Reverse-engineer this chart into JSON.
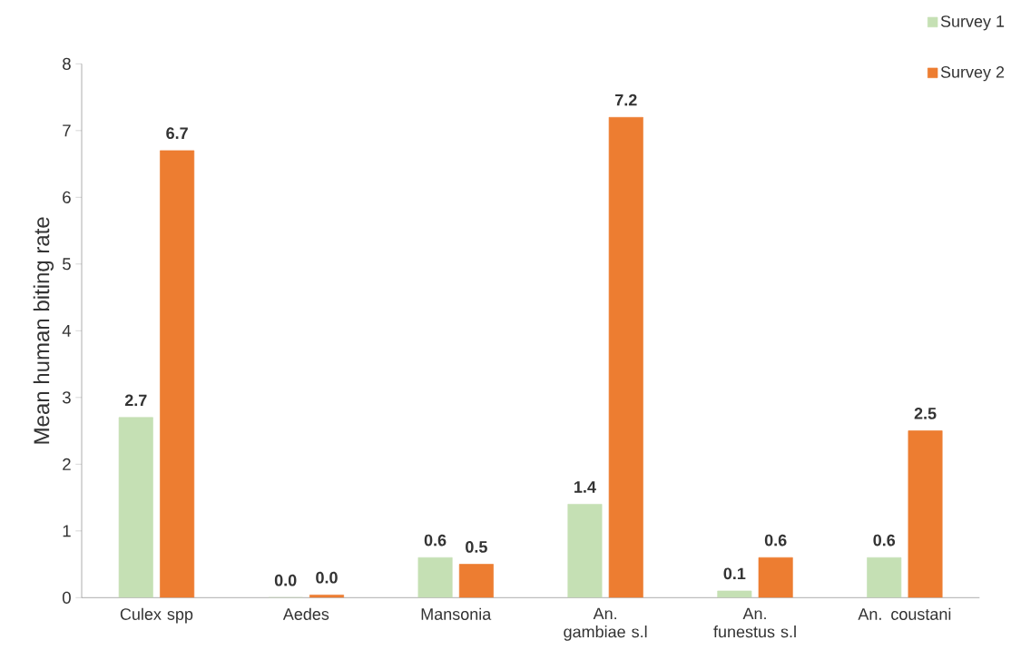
{
  "chart_data": {
    "type": "bar",
    "ylabel": "Mean human biting rate",
    "categories": [
      "Culex spp",
      "Aedes",
      "Mansonia",
      "An. gambiae s.l",
      "An. funestus s.l",
      "An. coustani"
    ],
    "series": [
      {
        "name": "Survey 1",
        "color": "#c5e0b4",
        "values": [
          2.7,
          0.0,
          0.6,
          1.4,
          0.1,
          0.6
        ],
        "value_labels": [
          "2.7",
          "0.0",
          "0.6",
          "1.4",
          "0.1",
          "0.6"
        ]
      },
      {
        "name": "Survey 2",
        "color": "#ed7d31",
        "values": [
          6.7,
          0.04,
          0.5,
          7.2,
          0.6,
          2.5
        ],
        "value_labels": [
          "6.7",
          "0.0",
          "0.5",
          "7.2",
          "0.6",
          "2.5"
        ]
      }
    ],
    "ylim": [
      0,
      8
    ],
    "yticks": [
      0,
      1,
      2,
      3,
      4,
      5,
      6,
      7,
      8
    ],
    "grid": false,
    "legend": "top right"
  }
}
